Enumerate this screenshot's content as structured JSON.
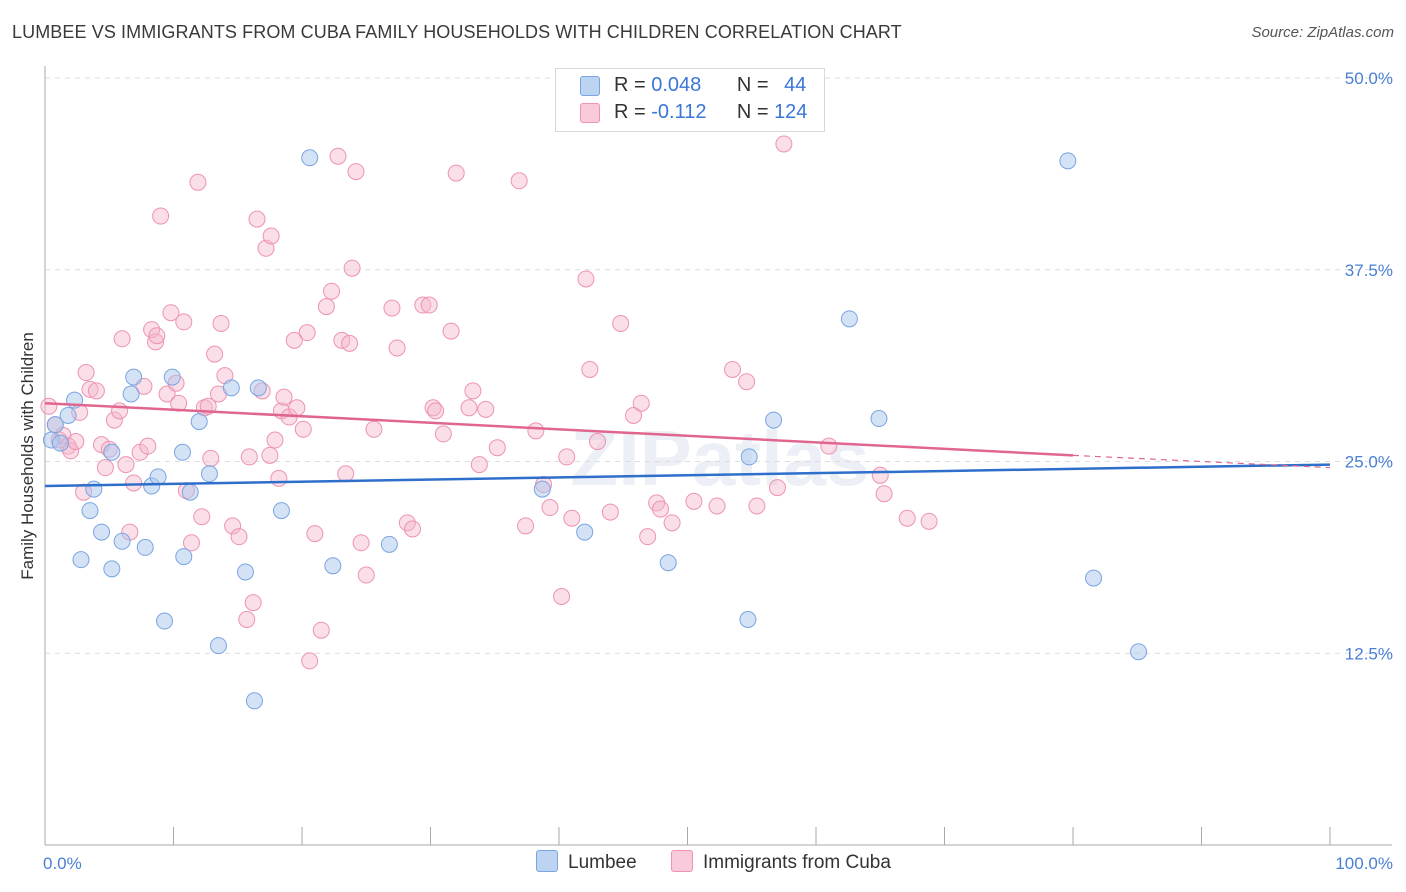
{
  "header": {
    "title": "LUMBEE VS IMMIGRANTS FROM CUBA FAMILY HOUSEHOLDS WITH CHILDREN CORRELATION CHART",
    "source": "Source: ZipAtlas.com"
  },
  "colors": {
    "lumbee_fill": "#a9c6ee",
    "lumbee_stroke": "#7aa5e0",
    "lumbee_line": "#2f6fcc",
    "cuba_fill": "#f5b6cb",
    "cuba_stroke": "#ee93b1",
    "cuba_line": "#e0668f",
    "accent_text": "#3a76d6"
  },
  "legend": {
    "rows": [
      {
        "r_label": "R =",
        "r_value": "0.048",
        "n_label": "N =",
        "n_value": "44"
      },
      {
        "r_label": "R =",
        "r_value": "-0.112",
        "n_label": "N =",
        "n_value": "124"
      }
    ]
  },
  "bottom_legend": [
    "Lumbee",
    "Immigrants from Cuba"
  ],
  "watermark": "ZIPatlas",
  "chart_data": {
    "type": "scatter",
    "ylabel": "Family Households with Children",
    "xlabel": "",
    "x_tick_labels": [
      "0.0%",
      "100.0%"
    ],
    "y_tick_labels": [
      "50.0%",
      "37.5%",
      "25.0%",
      "12.5%"
    ],
    "y_tick_values": [
      50,
      37.5,
      25,
      12.5
    ],
    "xlim": [
      0,
      100
    ],
    "ylim": [
      0,
      50
    ],
    "grid": "horizontal dashed",
    "legend_position": "top-center",
    "series": [
      {
        "name": "Lumbee",
        "r": 0.048,
        "n": 44,
        "trend": {
          "x": [
            0,
            100
          ],
          "y": [
            23.4,
            24.8
          ]
        },
        "points": [
          [
            0.5,
            26.4
          ],
          [
            0.8,
            27.4
          ],
          [
            1.2,
            26.2
          ],
          [
            1.8,
            28.0
          ],
          [
            2.3,
            29.0
          ],
          [
            3.5,
            21.8
          ],
          [
            3.8,
            23.2
          ],
          [
            4.4,
            20.4
          ],
          [
            2.8,
            18.6
          ],
          [
            5.2,
            25.6
          ],
          [
            5.2,
            18.0
          ],
          [
            6.0,
            19.8
          ],
          [
            6.7,
            29.4
          ],
          [
            6.9,
            30.5
          ],
          [
            7.8,
            19.4
          ],
          [
            8.3,
            23.4
          ],
          [
            8.8,
            24.0
          ],
          [
            9.3,
            14.6
          ],
          [
            9.9,
            30.5
          ],
          [
            10.7,
            25.6
          ],
          [
            10.8,
            18.8
          ],
          [
            11.3,
            23.0
          ],
          [
            12.0,
            27.6
          ],
          [
            12.8,
            24.2
          ],
          [
            13.5,
            13.0
          ],
          [
            14.5,
            29.8
          ],
          [
            15.6,
            17.8
          ],
          [
            16.3,
            9.4
          ],
          [
            16.6,
            29.8
          ],
          [
            18.4,
            21.8
          ],
          [
            20.6,
            44.8
          ],
          [
            22.4,
            18.2
          ],
          [
            26.8,
            19.6
          ],
          [
            38.7,
            23.2
          ],
          [
            42.0,
            20.4
          ],
          [
            48.5,
            18.4
          ],
          [
            54.7,
            14.7
          ],
          [
            54.8,
            25.3
          ],
          [
            56.7,
            27.7
          ],
          [
            62.6,
            34.3
          ],
          [
            64.9,
            27.8
          ],
          [
            79.6,
            44.6
          ],
          [
            81.6,
            17.4
          ],
          [
            85.1,
            12.6
          ]
        ]
      },
      {
        "name": "Immigrants from Cuba",
        "r": -0.112,
        "n": 124,
        "trend": {
          "x": [
            0,
            80
          ],
          "y": [
            28.8,
            25.4
          ]
        },
        "trend_dashed": {
          "x": [
            80,
            100
          ],
          "y": [
            25.4,
            24.6
          ]
        },
        "points": [
          [
            0.3,
            28.6
          ],
          [
            0.8,
            27.4
          ],
          [
            1.1,
            26.4
          ],
          [
            1.4,
            26.7
          ],
          [
            1.8,
            26.0
          ],
          [
            2.0,
            25.7
          ],
          [
            2.4,
            26.3
          ],
          [
            2.7,
            28.2
          ],
          [
            3.0,
            23.0
          ],
          [
            3.2,
            30.8
          ],
          [
            3.5,
            29.7
          ],
          [
            4.0,
            29.6
          ],
          [
            4.4,
            26.1
          ],
          [
            4.7,
            24.6
          ],
          [
            5.0,
            25.8
          ],
          [
            5.4,
            27.7
          ],
          [
            5.8,
            28.3
          ],
          [
            6.0,
            33.0
          ],
          [
            6.3,
            24.8
          ],
          [
            6.6,
            20.4
          ],
          [
            6.9,
            23.6
          ],
          [
            7.4,
            25.6
          ],
          [
            7.7,
            29.9
          ],
          [
            8.0,
            26.0
          ],
          [
            8.3,
            33.6
          ],
          [
            8.6,
            32.8
          ],
          [
            8.7,
            33.2
          ],
          [
            9.0,
            41.0
          ],
          [
            9.5,
            29.4
          ],
          [
            9.8,
            34.7
          ],
          [
            10.2,
            30.1
          ],
          [
            10.4,
            28.8
          ],
          [
            10.8,
            34.1
          ],
          [
            11.0,
            23.1
          ],
          [
            11.4,
            19.7
          ],
          [
            11.9,
            43.2
          ],
          [
            12.2,
            21.4
          ],
          [
            12.4,
            28.5
          ],
          [
            12.7,
            28.6
          ],
          [
            12.9,
            25.2
          ],
          [
            13.2,
            32.0
          ],
          [
            13.5,
            29.4
          ],
          [
            13.7,
            34.0
          ],
          [
            14.0,
            30.6
          ],
          [
            14.6,
            20.8
          ],
          [
            15.1,
            20.1
          ],
          [
            15.7,
            14.7
          ],
          [
            15.9,
            25.3
          ],
          [
            16.2,
            15.8
          ],
          [
            16.5,
            40.8
          ],
          [
            16.9,
            29.6
          ],
          [
            17.2,
            38.9
          ],
          [
            17.5,
            25.4
          ],
          [
            17.6,
            39.7
          ],
          [
            17.9,
            26.4
          ],
          [
            18.2,
            23.9
          ],
          [
            18.4,
            28.3
          ],
          [
            18.6,
            29.2
          ],
          [
            19.0,
            27.9
          ],
          [
            19.4,
            32.9
          ],
          [
            19.6,
            28.5
          ],
          [
            20.1,
            27.1
          ],
          [
            20.4,
            33.4
          ],
          [
            20.6,
            12.0
          ],
          [
            21.0,
            20.3
          ],
          [
            21.5,
            14.0
          ],
          [
            21.9,
            35.1
          ],
          [
            22.3,
            36.1
          ],
          [
            22.8,
            44.9
          ],
          [
            23.1,
            32.9
          ],
          [
            23.4,
            24.2
          ],
          [
            23.7,
            32.7
          ],
          [
            23.9,
            37.6
          ],
          [
            24.2,
            43.9
          ],
          [
            24.6,
            19.7
          ],
          [
            25.0,
            17.6
          ],
          [
            25.6,
            27.1
          ],
          [
            27.0,
            35.0
          ],
          [
            27.4,
            32.4
          ],
          [
            28.2,
            21.0
          ],
          [
            28.6,
            20.6
          ],
          [
            29.4,
            35.2
          ],
          [
            29.9,
            35.2
          ],
          [
            30.2,
            28.5
          ],
          [
            30.4,
            28.3
          ],
          [
            31.0,
            26.8
          ],
          [
            31.6,
            33.5
          ],
          [
            32.0,
            43.8
          ],
          [
            33.0,
            28.5
          ],
          [
            33.3,
            29.6
          ],
          [
            33.8,
            24.8
          ],
          [
            34.3,
            28.4
          ],
          [
            35.2,
            25.9
          ],
          [
            36.9,
            43.3
          ],
          [
            37.4,
            20.8
          ],
          [
            38.2,
            27.0
          ],
          [
            38.8,
            23.5
          ],
          [
            39.3,
            22.0
          ],
          [
            40.2,
            16.2
          ],
          [
            40.6,
            25.3
          ],
          [
            41.0,
            21.3
          ],
          [
            42.1,
            36.9
          ],
          [
            42.4,
            31.0
          ],
          [
            43.0,
            26.3
          ],
          [
            44.0,
            21.7
          ],
          [
            44.8,
            34.0
          ],
          [
            45.8,
            28.0
          ],
          [
            46.4,
            28.8
          ],
          [
            46.9,
            20.1
          ],
          [
            47.6,
            22.3
          ],
          [
            47.9,
            21.9
          ],
          [
            48.8,
            21.0
          ],
          [
            50.5,
            22.4
          ],
          [
            52.3,
            22.1
          ],
          [
            53.5,
            31.0
          ],
          [
            54.6,
            30.2
          ],
          [
            55.4,
            22.1
          ],
          [
            57.0,
            23.3
          ],
          [
            57.5,
            45.7
          ],
          [
            61.0,
            26.0
          ],
          [
            65.0,
            24.1
          ],
          [
            65.3,
            22.9
          ],
          [
            67.1,
            21.3
          ],
          [
            68.8,
            21.1
          ]
        ]
      }
    ]
  }
}
